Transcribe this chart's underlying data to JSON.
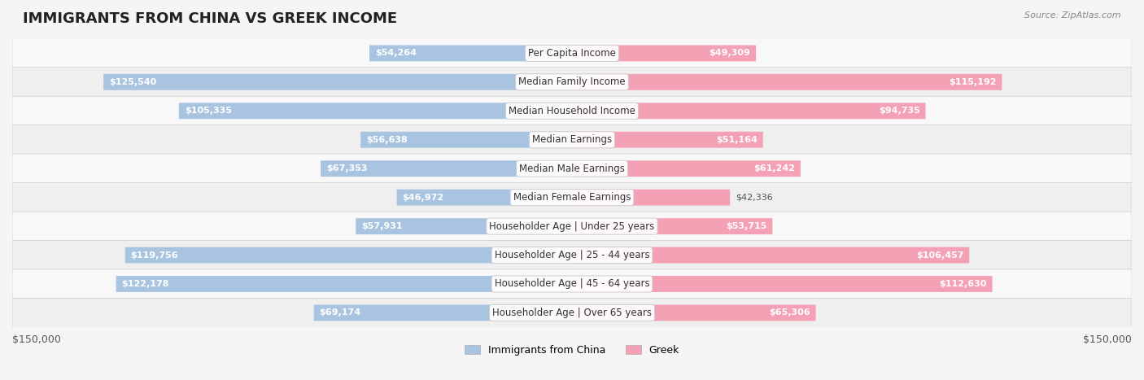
{
  "title": "IMMIGRANTS FROM CHINA VS GREEK INCOME",
  "source": "Source: ZipAtlas.com",
  "categories": [
    "Per Capita Income",
    "Median Family Income",
    "Median Household Income",
    "Median Earnings",
    "Median Male Earnings",
    "Median Female Earnings",
    "Householder Age | Under 25 years",
    "Householder Age | 25 - 44 years",
    "Householder Age | 45 - 64 years",
    "Householder Age | Over 65 years"
  ],
  "china_values": [
    54264,
    125540,
    105335,
    56638,
    67353,
    46972,
    57931,
    119756,
    122178,
    69174
  ],
  "greek_values": [
    49309,
    115192,
    94735,
    51164,
    61242,
    42336,
    53715,
    106457,
    112630,
    65306
  ],
  "china_color": "#a8c4e0",
  "china_color_dark": "#6fa8d4",
  "greek_color": "#f4a0b5",
  "greek_color_dark": "#e8758f",
  "max_value": 150000,
  "xlabel_left": "$150,000",
  "xlabel_right": "$150,000",
  "legend_china": "Immigrants from China",
  "legend_greek": "Greek",
  "background_color": "#f0f0f0",
  "row_background": "#f8f8f8",
  "row_background_alt": "#efefef",
  "title_fontsize": 13,
  "label_fontsize": 8.5,
  "value_fontsize": 8.0
}
